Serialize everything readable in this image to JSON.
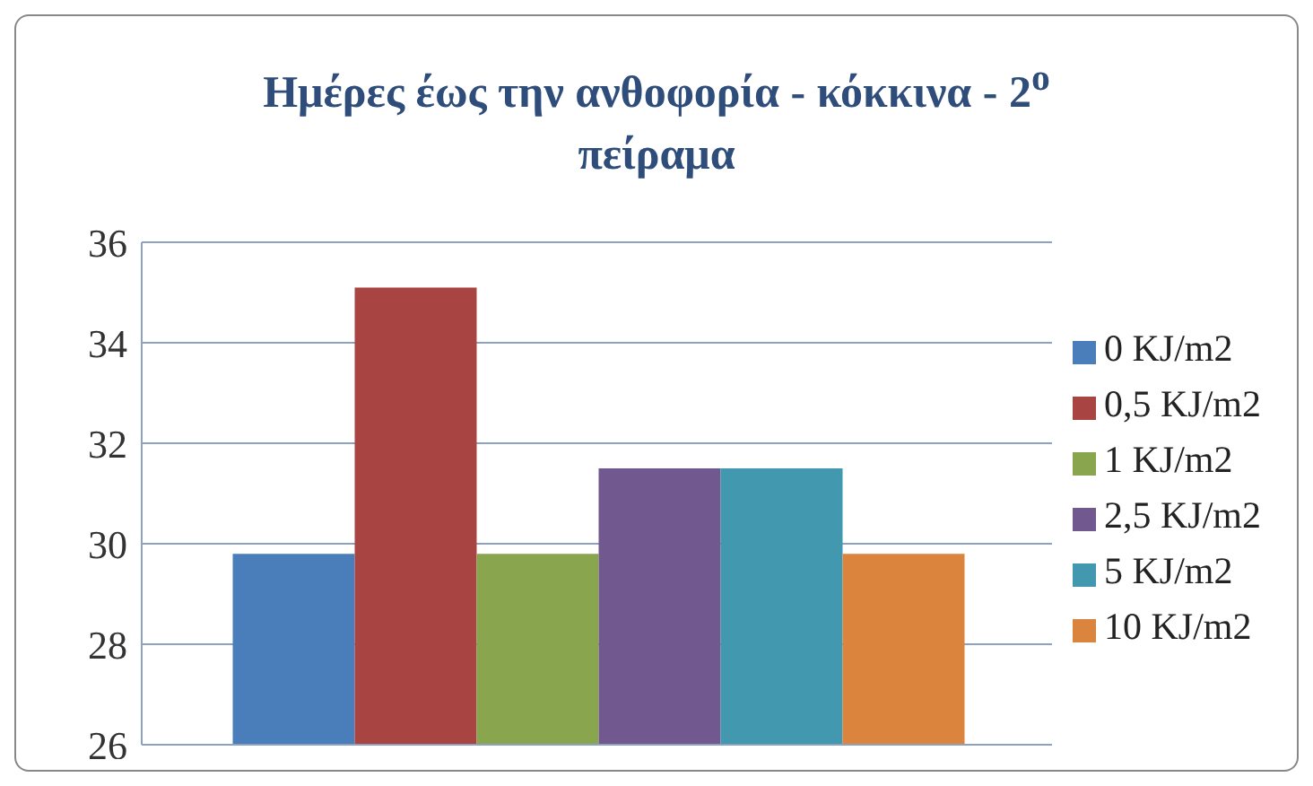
{
  "chart_data": {
    "type": "bar",
    "title": "Ημέρες έως την ανθοφορία - κόκκινα - 2$^{ο}$ πείραμα",
    "categories": [
      null
    ],
    "series": [
      {
        "name": "0 KJ/m2",
        "color": "#4a7ebb",
        "values": [
          29.8
        ]
      },
      {
        "name": "0,5 KJ/m2",
        "color": "#a84542",
        "values": [
          35.1
        ]
      },
      {
        "name": "1 KJ/m2",
        "color": "#89a54e",
        "values": [
          29.8
        ]
      },
      {
        "name": "2,5 KJ/m2",
        "color": "#71588f",
        "values": [
          31.5
        ]
      },
      {
        "name": "5 KJ/m2",
        "color": "#4198af",
        "values": [
          31.5
        ]
      },
      {
        "name": "10 KJ/m2",
        "color": "#db843d",
        "values": [
          29.8
        ]
      }
    ],
    "ylim": [
      26,
      36
    ],
    "yticks": [
      26,
      28,
      30,
      32,
      34,
      36
    ],
    "grid": "y",
    "legend": "right"
  }
}
